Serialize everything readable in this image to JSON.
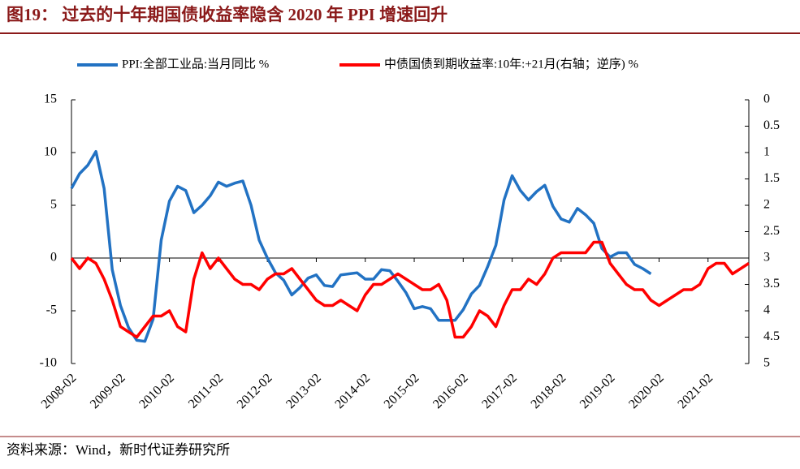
{
  "chart_data": {
    "type": "line",
    "title": "图19： 过去的十年期国债收益率隐含 2020 年 PPI 增速回升",
    "source": "资料来源：Wind，新时代证券研究所",
    "x": [
      "2008-02",
      "2008-04",
      "2008-06",
      "2008-08",
      "2008-10",
      "2008-12",
      "2009-02",
      "2009-04",
      "2009-06",
      "2009-08",
      "2009-10",
      "2009-12",
      "2010-02",
      "2010-04",
      "2010-06",
      "2010-08",
      "2010-10",
      "2010-12",
      "2011-02",
      "2011-04",
      "2011-06",
      "2011-08",
      "2011-10",
      "2011-12",
      "2012-02",
      "2012-04",
      "2012-06",
      "2012-08",
      "2012-10",
      "2012-12",
      "2013-02",
      "2013-04",
      "2013-06",
      "2013-08",
      "2013-10",
      "2013-12",
      "2014-02",
      "2014-04",
      "2014-06",
      "2014-08",
      "2014-10",
      "2014-12",
      "2015-02",
      "2015-04",
      "2015-06",
      "2015-08",
      "2015-10",
      "2015-12",
      "2016-02",
      "2016-04",
      "2016-06",
      "2016-08",
      "2016-10",
      "2016-12",
      "2017-02",
      "2017-04",
      "2017-06",
      "2017-08",
      "2017-10",
      "2017-12",
      "2018-02",
      "2018-04",
      "2018-06",
      "2018-08",
      "2018-10",
      "2018-12",
      "2019-02",
      "2019-04",
      "2019-06",
      "2019-08",
      "2019-10",
      "2019-12",
      "2020-02",
      "2020-04",
      "2020-06",
      "2020-08",
      "2020-10",
      "2020-12",
      "2021-02",
      "2021-04",
      "2021-06",
      "2021-08",
      "2021-10",
      "2021-12"
    ],
    "series": [
      {
        "name": "PPI:全部工业品:当月同比 %",
        "color": "#2272c3",
        "values": [
          6.6,
          8.0,
          8.8,
          10.1,
          6.6,
          -1.1,
          -4.5,
          -6.6,
          -7.8,
          -7.9,
          -5.8,
          1.7,
          5.4,
          6.8,
          6.4,
          4.3,
          5.0,
          5.9,
          7.2,
          6.8,
          7.1,
          7.3,
          5.0,
          1.7,
          0.0,
          -1.4,
          -2.1,
          -3.5,
          -2.8,
          -1.9,
          -1.6,
          -2.6,
          -2.7,
          -1.6,
          -1.5,
          -1.4,
          -2.0,
          -2.0,
          -1.1,
          -1.2,
          -2.2,
          -3.3,
          -4.8,
          -4.6,
          -4.8,
          -5.9,
          -5.9,
          -5.9,
          -4.9,
          -3.4,
          -2.6,
          -0.8,
          1.2,
          5.5,
          7.8,
          6.4,
          5.5,
          6.3,
          6.9,
          4.9,
          3.7,
          3.4,
          4.7,
          4.1,
          3.3,
          0.9,
          0.1,
          0.5,
          0.5,
          -0.6,
          -1.0,
          -1.5,
          null,
          null,
          null,
          null,
          null,
          null,
          null,
          null,
          null,
          null,
          null,
          null
        ]
      },
      {
        "name": "中债国债到期收益率:10年:+21月(右轴；逆序) %",
        "color": "#ff0000",
        "axis": "y2",
        "values": [
          3.0,
          3.2,
          3.0,
          3.1,
          3.4,
          3.8,
          4.3,
          4.4,
          4.5,
          4.3,
          4.1,
          4.1,
          4.0,
          4.3,
          4.4,
          3.4,
          2.9,
          3.2,
          3.0,
          3.2,
          3.4,
          3.5,
          3.5,
          3.6,
          3.4,
          3.3,
          3.3,
          3.2,
          3.4,
          3.6,
          3.8,
          3.9,
          3.9,
          3.8,
          3.9,
          4.0,
          3.7,
          3.5,
          3.5,
          3.4,
          3.3,
          3.4,
          3.5,
          3.6,
          3.6,
          3.5,
          3.8,
          4.5,
          4.5,
          4.3,
          4.0,
          4.1,
          4.3,
          3.9,
          3.6,
          3.6,
          3.4,
          3.5,
          3.3,
          3.0,
          2.9,
          2.9,
          2.9,
          2.9,
          2.7,
          2.7,
          3.1,
          3.3,
          3.5,
          3.6,
          3.6,
          3.8,
          3.9,
          3.8,
          3.7,
          3.6,
          3.6,
          3.5,
          3.2,
          3.1,
          3.1,
          3.3,
          3.2,
          3.1
        ]
      }
    ],
    "ylim": [
      -10,
      15
    ],
    "yticks": [
      -10,
      -5,
      0,
      5,
      10,
      15
    ],
    "y2lim": [
      5,
      0
    ],
    "y2ticks": [
      0,
      0.5,
      1,
      1.5,
      2,
      2.5,
      3,
      3.5,
      4,
      4.5,
      5
    ]
  }
}
